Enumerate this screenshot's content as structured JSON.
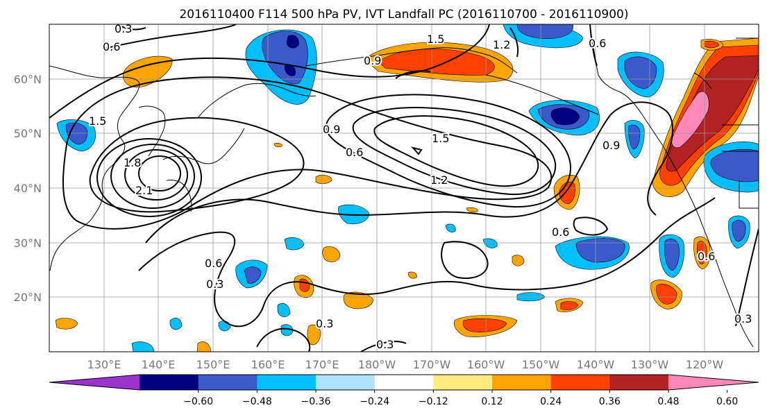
{
  "title": "2016110400 F114 500 hPa PV, IVT Landfall PC (2016110700 - 2016110900)",
  "lat_labels": [
    "60°N",
    "50°N",
    "40°N",
    "30°N",
    "20°N"
  ],
  "lon_labels": [
    "130°E",
    "140°E",
    "150°E",
    "160°E",
    "170°E",
    "180°W",
    "170°W",
    "160°W",
    "150°W",
    "140°W",
    "130°W",
    "120°W"
  ],
  "colorbar": {
    "colors": [
      "#9933cc",
      "#000080",
      "#3a5acc",
      "#00bfff",
      "#b0e0ff",
      "#ffffff",
      "#ffeb80",
      "#ffa500",
      "#ff4000",
      "#b22222",
      "#ff88b8"
    ],
    "tick_labels": [
      "−0.60",
      "−0.48",
      "−0.36",
      "−0.24",
      "−0.12",
      "0.12",
      "0.24",
      "0.36",
      "0.48",
      "0.60"
    ]
  },
  "contour_labels": [
    "0.3",
    "0.6",
    "1.5",
    "0.9",
    "1.2",
    "1.8",
    "2.1",
    "0.9",
    "0.6",
    "1.5",
    "1.2",
    "0.9",
    "0.6",
    "0.6",
    "0.6",
    "0.3",
    "0.3",
    "0.3",
    "0.3",
    "0.6"
  ]
}
